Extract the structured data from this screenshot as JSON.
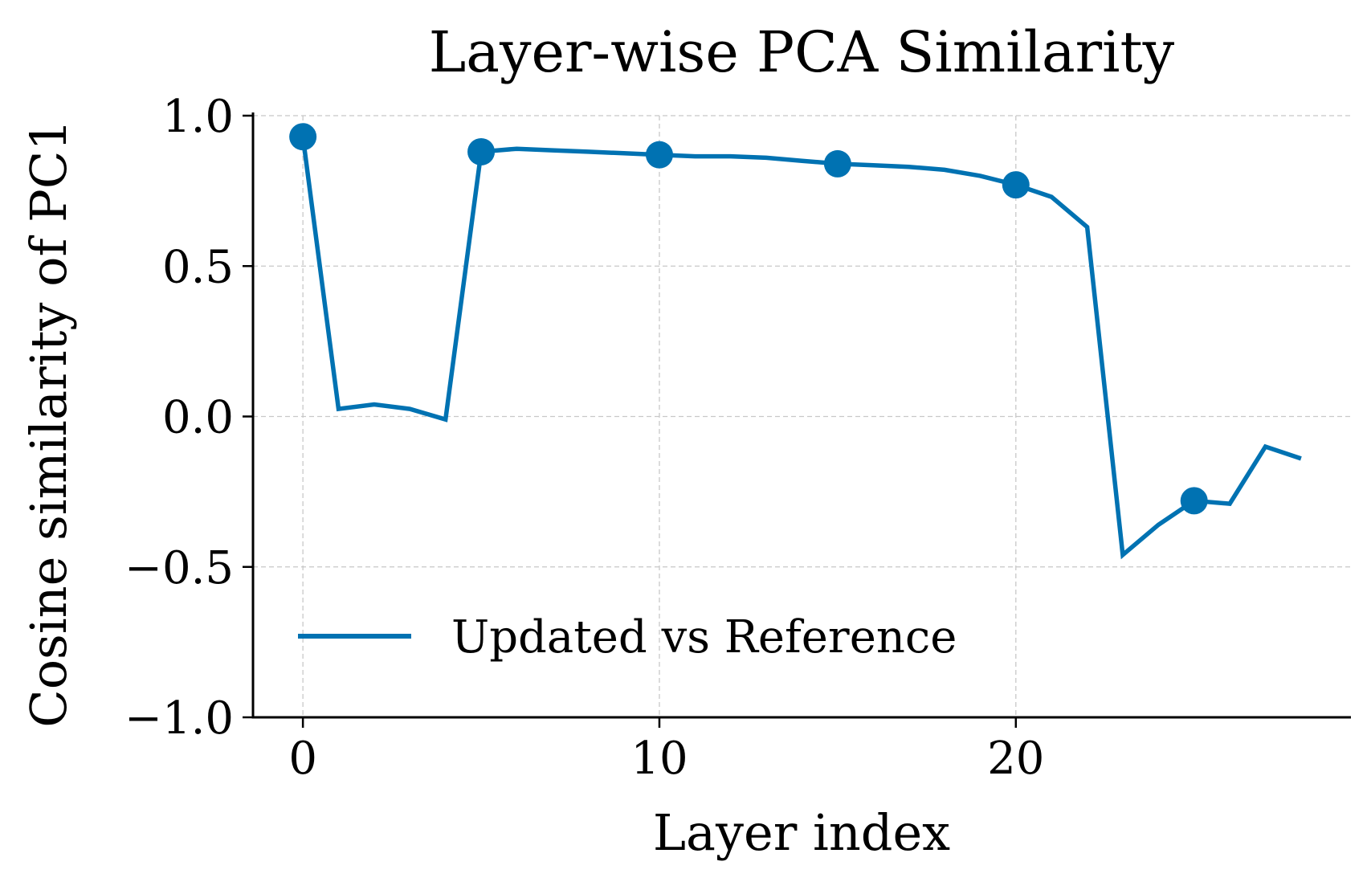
{
  "chart_data": {
    "type": "line",
    "title": "Layer-wise PCA Similarity",
    "xlabel": "Layer index",
    "ylabel": "Cosine similarity of PC1",
    "xlim": [
      -1.4,
      29.4
    ],
    "ylim": [
      -1.0,
      1.0
    ],
    "xticks": [
      0,
      10,
      20
    ],
    "xtick_labels": [
      "0",
      "10",
      "20"
    ],
    "yticks": [
      1.0,
      0.5,
      0.0,
      -0.5,
      -1.0
    ],
    "ytick_labels": [
      "1.0",
      "0.5",
      "0.0",
      "−0.5",
      "−1.0"
    ],
    "grid": true,
    "legend_position": "lower-left",
    "color": "#0072b2",
    "series": [
      {
        "name": "Updated vs Reference",
        "x": [
          0,
          1,
          2,
          3,
          4,
          5,
          6,
          7,
          8,
          9,
          10,
          11,
          12,
          13,
          14,
          15,
          16,
          17,
          18,
          19,
          20,
          21,
          22,
          23,
          24,
          25,
          26,
          27,
          28
        ],
        "y": [
          0.93,
          0.025,
          0.04,
          0.025,
          -0.01,
          0.88,
          0.89,
          0.885,
          0.88,
          0.875,
          0.87,
          0.865,
          0.865,
          0.86,
          0.85,
          0.84,
          0.835,
          0.83,
          0.82,
          0.8,
          0.77,
          0.73,
          0.63,
          -0.46,
          -0.36,
          -0.28,
          -0.29,
          -0.1,
          -0.14
        ],
        "marker_x": [
          0,
          5,
          10,
          15,
          20,
          25
        ]
      }
    ]
  }
}
